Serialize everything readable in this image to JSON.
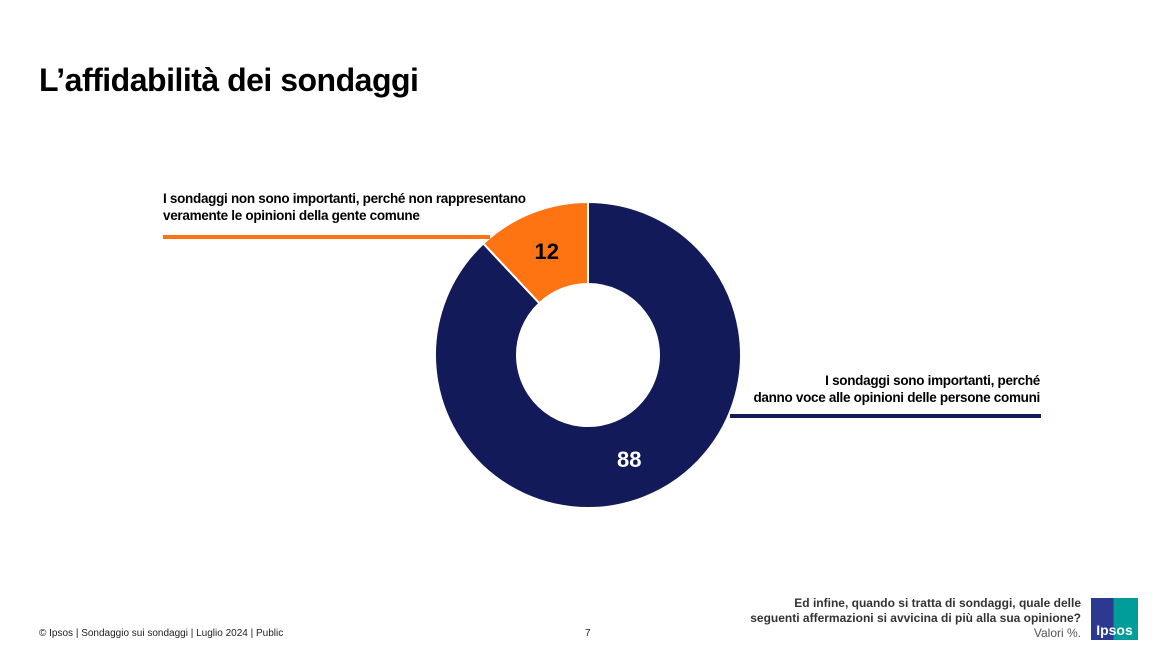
{
  "title": "L’affidabilità dei sondaggi",
  "chart_data": {
    "type": "pie",
    "donut": true,
    "slices": [
      {
        "label": "I sondaggi sono importanti, perché danno voce alle opinioni delle persone comuni",
        "value": 88,
        "color": "#121a59"
      },
      {
        "label": "I sondaggi non sono importanti, perché non rappresentano veramente le opinioni della gente comune",
        "value": 12,
        "color": "#ff7412"
      }
    ],
    "label_lines": {
      "orange": [
        "I sondaggi non sono importanti, perché non rappresentano",
        "veramente le opinioni della gente comune"
      ],
      "navy": [
        "I sondaggi sono importanti, perché",
        "danno voce alle opinioni delle persone comuni"
      ]
    }
  },
  "footer": {
    "copyright": "© Ipsos | Sondaggio sui sondaggi | Luglio 2024 | Public",
    "page": "7",
    "question_line1": "Ed infine, quando si tratta di sondaggi, quale delle",
    "question_line2": "seguenti affermazioni si avvicina di più alla sua opinione?",
    "units": "Valori %.",
    "logo_text": "Ipsos"
  }
}
